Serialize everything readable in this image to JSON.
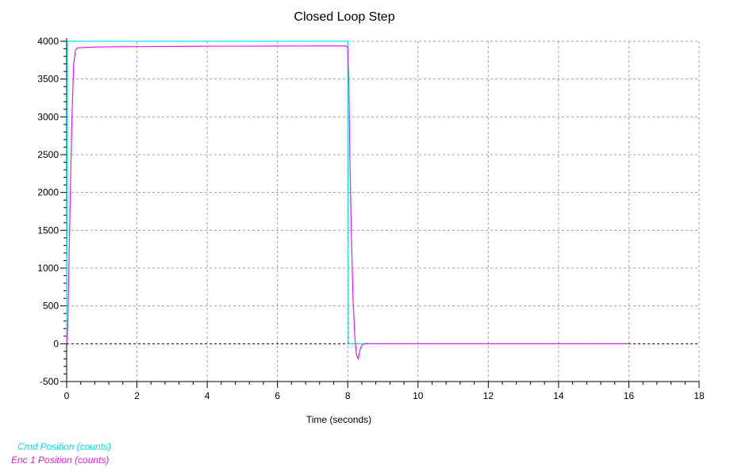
{
  "chart_data": {
    "type": "line",
    "title": "Closed Loop Step",
    "xlabel": "Time (seconds)",
    "ylabel": "",
    "xlim": [
      0,
      18
    ],
    "ylim": [
      -500,
      4000
    ],
    "x_ticks": [
      0,
      2,
      4,
      6,
      8,
      10,
      12,
      14,
      16,
      18
    ],
    "x_tick_labels": [
      "0",
      "2",
      "4",
      "6",
      "8",
      "10",
      "12",
      "14",
      "16",
      "18"
    ],
    "y_ticks": [
      -500,
      0,
      500,
      1000,
      1500,
      2000,
      2500,
      3000,
      3500,
      4000
    ],
    "y_tick_labels": [
      "-500",
      "0",
      "500",
      "1000",
      "1500",
      "2000",
      "2500",
      "3000",
      "3500",
      "4000"
    ],
    "grid": true,
    "legend_position": "bottom-left",
    "series": [
      {
        "name": "Cmd Position (counts)",
        "color": "#00e5e5",
        "x": [
          0,
          0.02,
          8.0,
          8.02,
          16.0
        ],
        "y": [
          0,
          4000,
          4000,
          0,
          0
        ]
      },
      {
        "name": "Enc 1 Position (counts)",
        "color": "#e020e0",
        "x": [
          0,
          0.03,
          0.06,
          0.1,
          0.15,
          0.2,
          0.25,
          0.3,
          0.4,
          0.6,
          1.0,
          1.5,
          2.0,
          3.0,
          4.0,
          5.0,
          6.0,
          7.0,
          7.95,
          8.0,
          8.03,
          8.06,
          8.1,
          8.15,
          8.2,
          8.25,
          8.3,
          8.35,
          8.4,
          8.5,
          8.7,
          9.0,
          10.0,
          12.0,
          14.0,
          16.0
        ],
        "y": [
          0,
          200,
          900,
          1900,
          3000,
          3700,
          3880,
          3910,
          3915,
          3920,
          3925,
          3928,
          3930,
          3932,
          3935,
          3935,
          3937,
          3938,
          3938,
          3920,
          3500,
          2500,
          1500,
          600,
          100,
          -150,
          -200,
          -80,
          -20,
          5,
          0,
          0,
          0,
          0,
          0,
          0
        ]
      }
    ]
  }
}
